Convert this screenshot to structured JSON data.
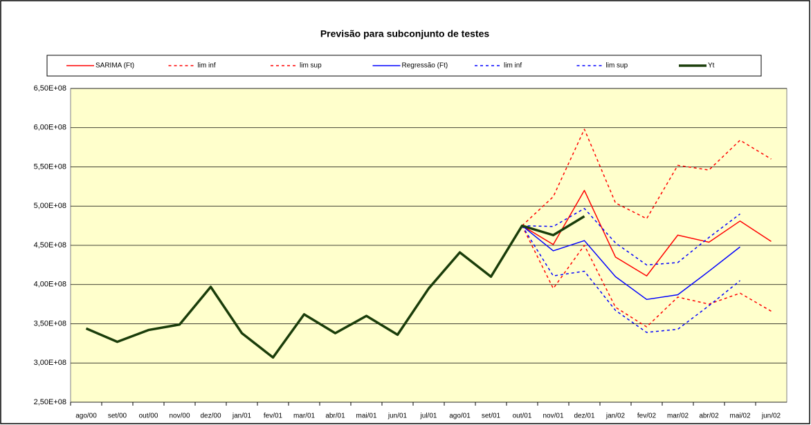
{
  "chart_data": {
    "type": "line",
    "title": "Previsão para subconjunto de testes",
    "categories": [
      "ago/00",
      "set/00",
      "out/00",
      "nov/00",
      "dez/00",
      "jan/01",
      "fev/01",
      "mar/01",
      "abr/01",
      "mai/01",
      "jun/01",
      "jul/01",
      "ago/01",
      "set/01",
      "out/01",
      "nov/01",
      "dez/01",
      "jan/02",
      "fev/02",
      "mar/02",
      "abr/02",
      "mai/02",
      "jun/02"
    ],
    "series": [
      {
        "name": "SARIMA (Ft)",
        "color": "#ff0000",
        "line_style": "solid",
        "line_width": 1.5,
        "values": [
          null,
          null,
          null,
          null,
          null,
          null,
          null,
          null,
          null,
          null,
          null,
          null,
          null,
          null,
          475000000,
          451000000,
          520000000,
          435000000,
          411000000,
          463000000,
          454000000,
          481000000,
          455000000
        ]
      },
      {
        "name": "lim inf",
        "color": "#ff0000",
        "line_style": "dashed",
        "line_width": 1.5,
        "values": [
          null,
          null,
          null,
          null,
          null,
          null,
          null,
          null,
          null,
          null,
          null,
          null,
          null,
          null,
          475000000,
          395000000,
          450000000,
          371000000,
          346000000,
          384000000,
          375000000,
          389000000,
          366000000
        ]
      },
      {
        "name": "lim sup",
        "color": "#ff0000",
        "line_style": "dashed",
        "line_width": 1.5,
        "values": [
          null,
          null,
          null,
          null,
          null,
          null,
          null,
          null,
          null,
          null,
          null,
          null,
          null,
          null,
          475000000,
          512000000,
          598000000,
          504000000,
          484000000,
          552000000,
          546000000,
          584000000,
          560000000
        ]
      },
      {
        "name": "Regressão (Ft)",
        "color": "#0000ff",
        "line_style": "solid",
        "line_width": 1.5,
        "values": [
          null,
          null,
          null,
          null,
          null,
          null,
          null,
          null,
          null,
          null,
          null,
          null,
          null,
          null,
          475000000,
          443000000,
          456000000,
          410000000,
          381000000,
          387000000,
          417000000,
          448000000,
          null
        ]
      },
      {
        "name": "lim inf",
        "color": "#0000ff",
        "line_style": "dashed",
        "line_width": 1.5,
        "values": [
          null,
          null,
          null,
          null,
          null,
          null,
          null,
          null,
          null,
          null,
          null,
          null,
          null,
          null,
          475000000,
          411000000,
          417000000,
          367000000,
          339000000,
          343000000,
          373000000,
          405000000,
          null
        ]
      },
      {
        "name": "lim sup",
        "color": "#0000ff",
        "line_style": "dashed",
        "line_width": 1.5,
        "values": [
          null,
          null,
          null,
          null,
          null,
          null,
          null,
          null,
          null,
          null,
          null,
          null,
          null,
          null,
          475000000,
          474000000,
          497000000,
          453000000,
          425000000,
          428000000,
          460000000,
          490000000,
          null
        ]
      },
      {
        "name": "Yt",
        "color": "#1a3d0a",
        "line_style": "solid",
        "line_width": 3.5,
        "values": [
          344000000,
          327000000,
          342000000,
          349000000,
          397000000,
          338000000,
          307000000,
          362000000,
          338000000,
          360000000,
          336000000,
          395000000,
          441000000,
          410000000,
          475000000,
          463000000,
          487000000,
          null,
          null,
          null,
          null,
          null,
          null
        ]
      }
    ],
    "ylim": [
      250000000,
      650000000
    ],
    "yticks": [
      {
        "value": 250000000,
        "label": "2,50E+08"
      },
      {
        "value": 300000000,
        "label": "3,00E+08"
      },
      {
        "value": 350000000,
        "label": "3,50E+08"
      },
      {
        "value": 400000000,
        "label": "4,00E+08"
      },
      {
        "value": 450000000,
        "label": "4,50E+08"
      },
      {
        "value": 500000000,
        "label": "5,00E+08"
      },
      {
        "value": 550000000,
        "label": "5,50E+08"
      },
      {
        "value": 600000000,
        "label": "6,00E+08"
      },
      {
        "value": 650000000,
        "label": "6,50E+08"
      }
    ],
    "grid": true,
    "legend": "top",
    "plot_background": "#ffffcc"
  }
}
